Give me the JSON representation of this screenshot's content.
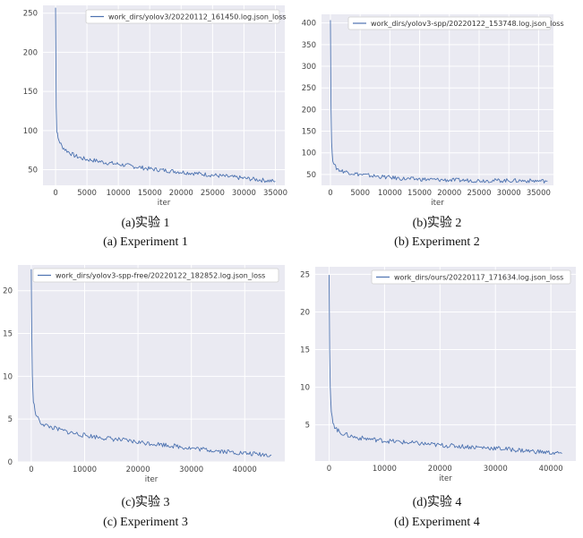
{
  "chart_data": [
    {
      "type": "line",
      "caption_cn": "(a)实验 1",
      "caption_en": "(a) Experiment 1",
      "xlabel": "iter",
      "ylabel": "",
      "xlim": [
        -2000,
        36500
      ],
      "ylim": [
        30,
        260
      ],
      "xticks": [
        0,
        5000,
        10000,
        15000,
        20000,
        25000,
        30000,
        35000
      ],
      "yticks": [
        50,
        100,
        150,
        200,
        250
      ],
      "legend_position": "top-right",
      "grid": true,
      "series": [
        {
          "name": "work_dirs/yolov3/20220112_161450.log.json_loss",
          "color": "#4c72b0",
          "x": [
            0,
            50,
            100,
            200,
            400,
            700,
            1000,
            1500,
            2000,
            3000,
            4000,
            5000,
            6000,
            8000,
            10000,
            12500,
            15000,
            17500,
            20000,
            22500,
            25000,
            27500,
            30000,
            32500,
            35000
          ],
          "y": [
            257,
            200,
            130,
            100,
            90,
            85,
            80,
            76,
            73,
            68,
            65,
            63,
            62,
            59,
            57,
            54,
            51,
            49,
            47,
            45,
            43,
            41,
            39,
            37,
            35
          ]
        }
      ]
    },
    {
      "type": "line",
      "caption_cn": "(b)实验 2",
      "caption_en": "(b) Experiment 2",
      "xlabel": "iter",
      "ylabel": "",
      "xlim": [
        -1500,
        37500
      ],
      "ylim": [
        25,
        420
      ],
      "xticks": [
        0,
        5000,
        10000,
        15000,
        20000,
        25000,
        30000,
        35000
      ],
      "yticks": [
        50,
        100,
        150,
        200,
        250,
        300,
        350,
        400
      ],
      "legend_position": "top-right",
      "grid": true,
      "series": [
        {
          "name": "work_dirs/yolov3-spp/20220122_153748.log.json_loss",
          "color": "#4c72b0",
          "x": [
            0,
            50,
            100,
            200,
            400,
            700,
            1000,
            1500,
            2000,
            3000,
            4000,
            5000,
            7500,
            10000,
            12500,
            15000,
            20000,
            25000,
            30000,
            35000,
            36500
          ],
          "y": [
            408,
            300,
            200,
            120,
            85,
            70,
            65,
            60,
            58,
            55,
            52,
            50,
            46,
            43,
            40,
            39,
            37,
            36,
            36,
            35,
            35
          ]
        }
      ]
    },
    {
      "type": "line",
      "caption_cn": "(c)实验 3",
      "caption_en": "(c) Experiment 3",
      "xlabel": "iter",
      "ylabel": "",
      "xlim": [
        -2500,
        47500
      ],
      "ylim": [
        0,
        23
      ],
      "xticks": [
        0,
        10000,
        20000,
        30000,
        40000
      ],
      "yticks": [
        0,
        5,
        10,
        15,
        20
      ],
      "legend_position": "top-right",
      "grid": true,
      "series": [
        {
          "name": "work_dirs/yolov3-spp-free/20220122_182852.log.json_loss",
          "color": "#4c72b0",
          "x": [
            0,
            50,
            100,
            200,
            400,
            700,
            1000,
            1500,
            2000,
            3000,
            4000,
            5000,
            7500,
            10000,
            15000,
            20000,
            25000,
            30000,
            35000,
            40000,
            45000
          ],
          "y": [
            22.5,
            18,
            15,
            10,
            7,
            6,
            5.3,
            4.8,
            4.5,
            4.2,
            4.0,
            3.8,
            3.4,
            3.1,
            2.7,
            2.3,
            2.0,
            1.6,
            1.3,
            1.0,
            0.8
          ]
        }
      ]
    },
    {
      "type": "line",
      "caption_cn": "(d)实验 4",
      "caption_en": "(d) Experiment 4",
      "xlabel": "iter",
      "ylabel": "",
      "xlim": [
        -2500,
        44500
      ],
      "ylim": [
        0.2,
        26
      ],
      "xticks": [
        0,
        10000,
        20000,
        30000,
        40000
      ],
      "yticks": [
        5,
        10,
        15,
        20,
        25
      ],
      "legend_position": "top-right",
      "grid": true,
      "series": [
        {
          "name": "work_dirs/ours/20220117_171634.log.json_loss",
          "color": "#4c72b0",
          "x": [
            0,
            50,
            100,
            200,
            400,
            700,
            1000,
            1500,
            2000,
            3000,
            4000,
            5000,
            7500,
            10000,
            15000,
            20000,
            25000,
            30000,
            35000,
            40000,
            42000
          ],
          "y": [
            25,
            20,
            15,
            10,
            6.5,
            5.5,
            4.8,
            4.3,
            4.0,
            3.7,
            3.5,
            3.3,
            3.1,
            2.9,
            2.6,
            2.3,
            2.1,
            1.9,
            1.6,
            1.3,
            1.2
          ]
        }
      ]
    }
  ]
}
